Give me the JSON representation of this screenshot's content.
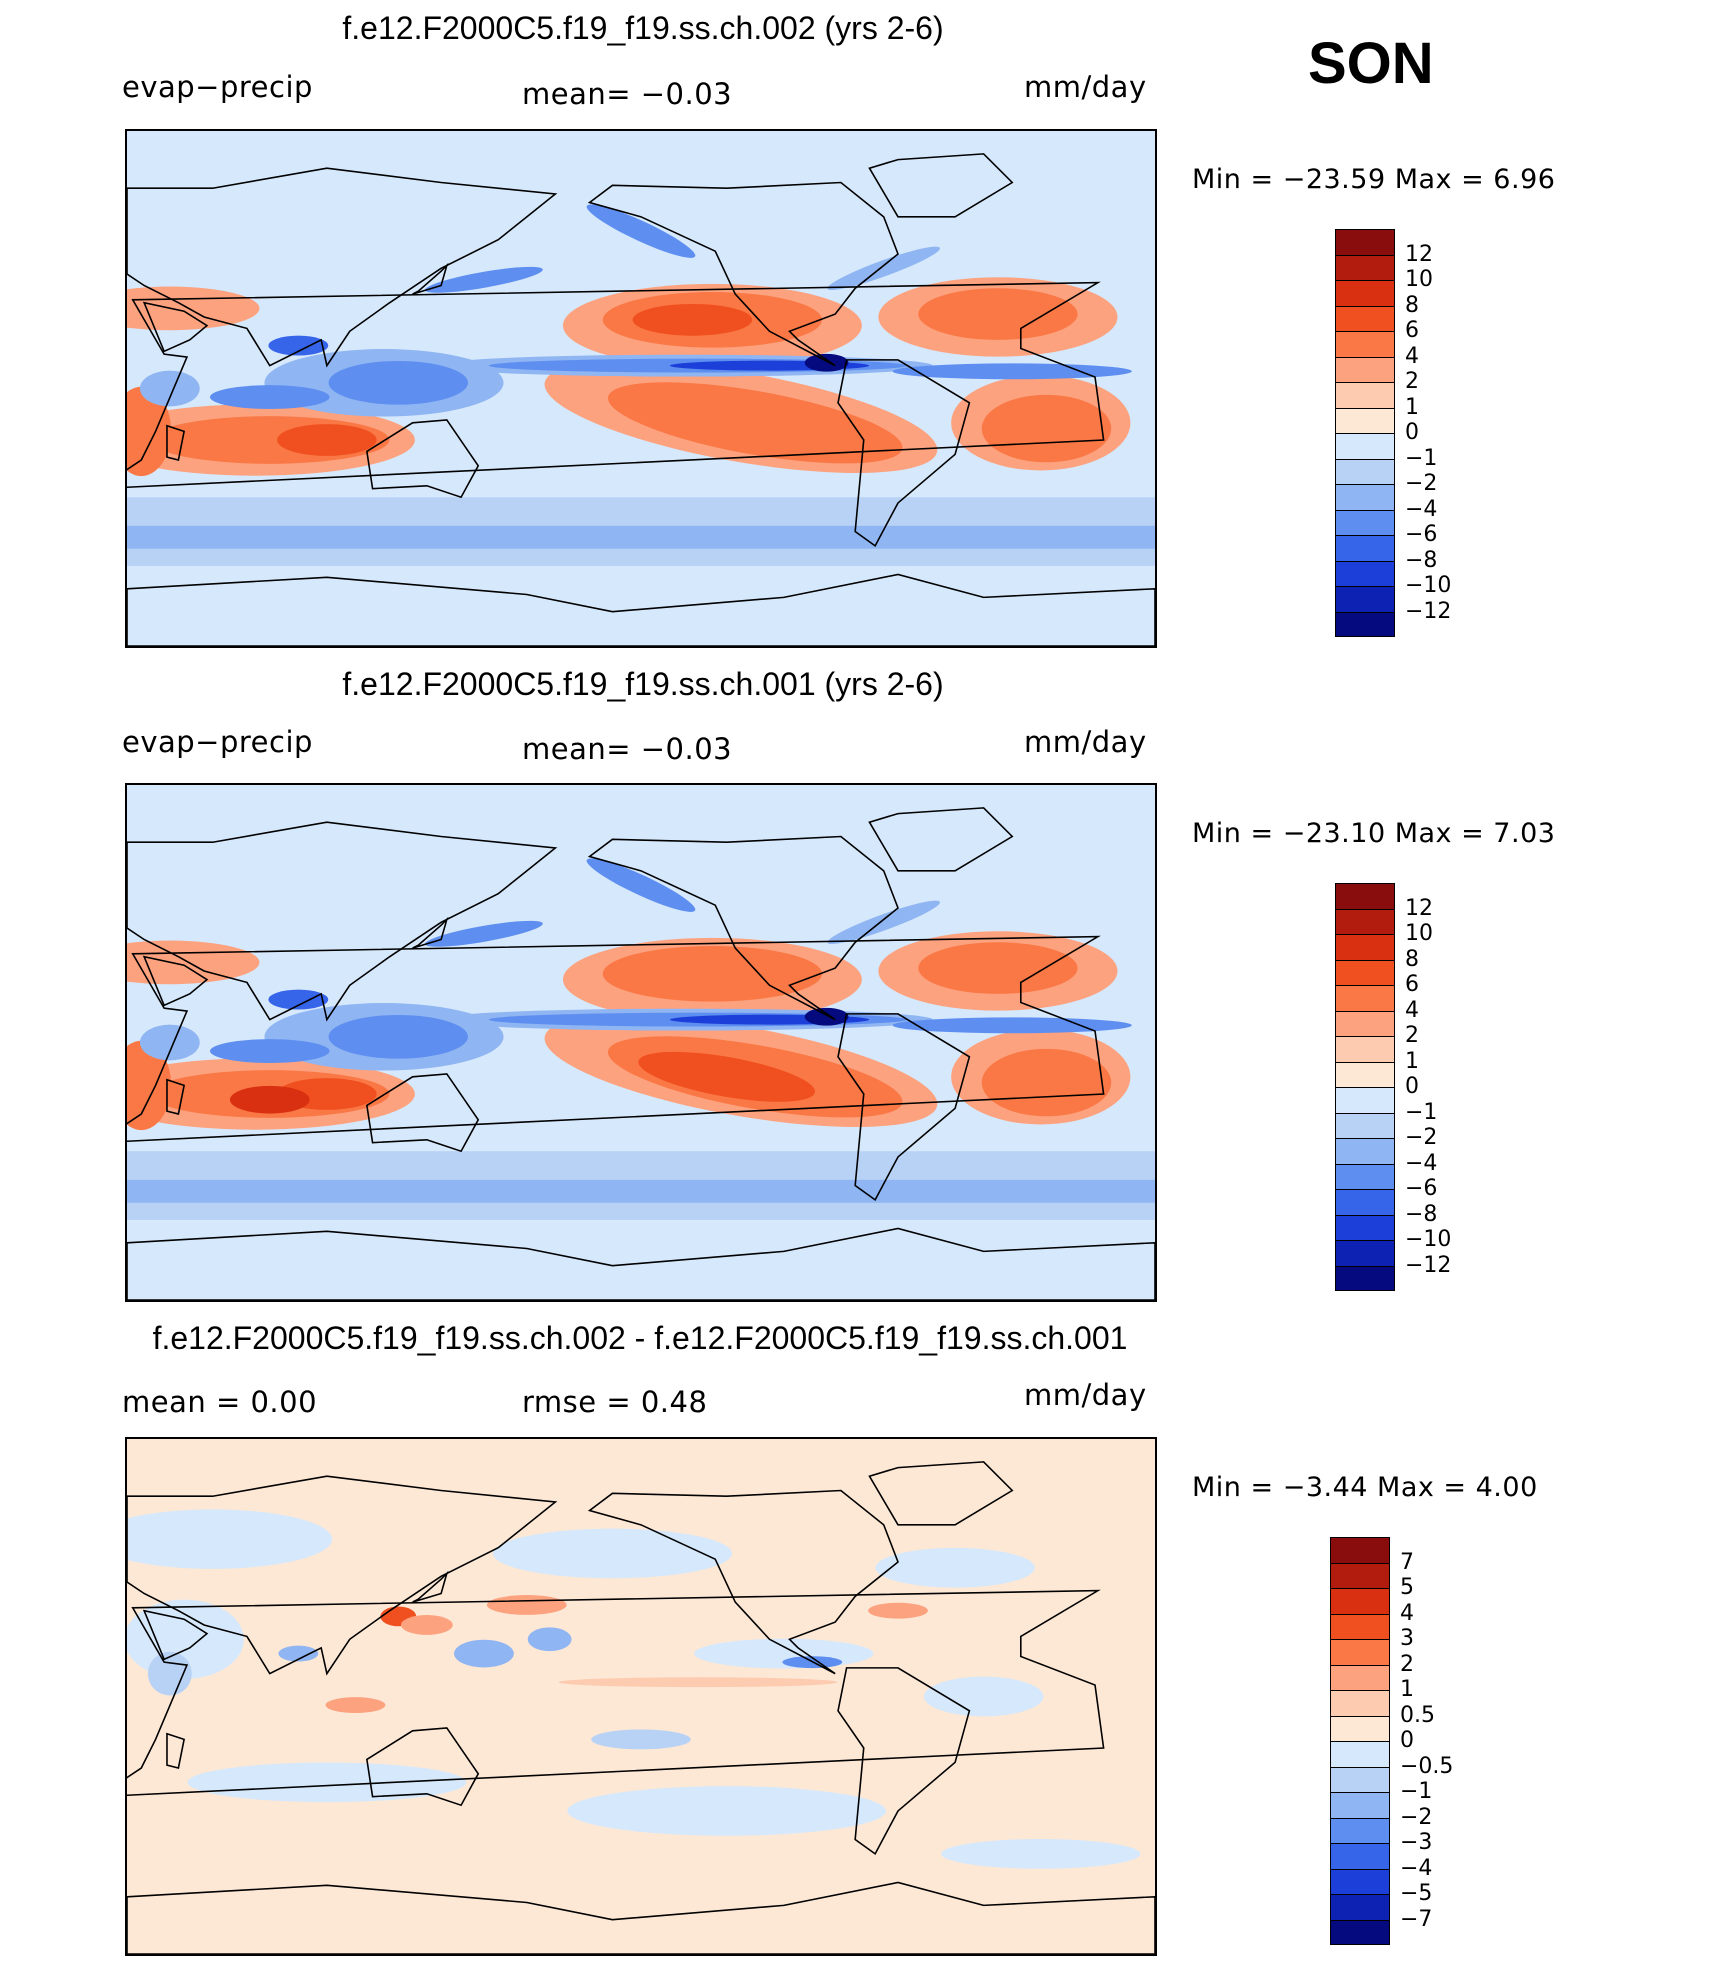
{
  "season": "SON",
  "panels": [
    {
      "title": "f.e12.F2000C5.f19_f19.ss.ch.002 (yrs 2-6)",
      "left_label": "evap−precip",
      "center_label": "mean=   −0.03",
      "right_label": "mm/day",
      "minmax": "Min  =  −23.59  Max  =     6.96"
    },
    {
      "title": "f.e12.F2000C5.f19_f19.ss.ch.001 (yrs 2-6)",
      "left_label": "evap−precip",
      "center_label": "mean=   −0.03",
      "right_label": "mm/day",
      "minmax": "Min  =  −23.10  Max  =     7.03"
    },
    {
      "title": "f.e12.F2000C5.f19_f19.ss.ch.002 - f.e12.F2000C5.f19_f19.ss.ch.001",
      "left_label": "mean  =     0.00",
      "center_label": "rmse  =     0.48",
      "right_label": "mm/day",
      "minmax": "Min  =    −3.44  Max  =     4.00"
    }
  ],
  "chart_data": [
    {
      "type": "heatmap",
      "title": "f.e12.F2000C5.f19_f19.ss.ch.002 (yrs 2-6)",
      "variable": "evap−precip",
      "units": "mm/day",
      "mean": -0.03,
      "min": -23.59,
      "max": 6.96,
      "colorbar_levels": [
        "12",
        "10",
        "8",
        "6",
        "4",
        "2",
        "1",
        "0",
        "−1",
        "−2",
        "−4",
        "−6",
        "−8",
        "−10",
        "−12"
      ],
      "colorbar_colors": [
        "#8a0d0d",
        "#b21c0e",
        "#d83010",
        "#f0501f",
        "#fa7845",
        "#fca27f",
        "#fdcbb0",
        "#fde8d6",
        "#d6e8fb",
        "#b8d2f6",
        "#8fb5f2",
        "#5e8ff0",
        "#3765ea",
        "#1b3fd8",
        "#0d22b2",
        "#050a7e"
      ]
    },
    {
      "type": "heatmap",
      "title": "f.e12.F2000C5.f19_f19.ss.ch.001 (yrs 2-6)",
      "variable": "evap−precip",
      "units": "mm/day",
      "mean": -0.03,
      "min": -23.1,
      "max": 7.03,
      "colorbar_levels": [
        "12",
        "10",
        "8",
        "6",
        "4",
        "2",
        "1",
        "0",
        "−1",
        "−2",
        "−4",
        "−6",
        "−8",
        "−10",
        "−12"
      ],
      "colorbar_colors": [
        "#8a0d0d",
        "#b21c0e",
        "#d83010",
        "#f0501f",
        "#fa7845",
        "#fca27f",
        "#fdcbb0",
        "#fde8d6",
        "#d6e8fb",
        "#b8d2f6",
        "#8fb5f2",
        "#5e8ff0",
        "#3765ea",
        "#1b3fd8",
        "#0d22b2",
        "#050a7e"
      ]
    },
    {
      "type": "heatmap",
      "title": "f.e12.F2000C5.f19_f19.ss.ch.002 - f.e12.F2000C5.f19_f19.ss.ch.001",
      "units": "mm/day",
      "mean": 0.0,
      "rmse": 0.48,
      "min": -3.44,
      "max": 4.0,
      "colorbar_levels": [
        "7",
        "5",
        "4",
        "3",
        "2",
        "1",
        "0.5",
        "0",
        "−0.5",
        "−1",
        "−2",
        "−3",
        "−4",
        "−5",
        "−7"
      ],
      "colorbar_colors": [
        "#8a0d0d",
        "#b21c0e",
        "#d83010",
        "#f0501f",
        "#fa7845",
        "#fca27f",
        "#fdcbb0",
        "#fde8d6",
        "#d6e8fb",
        "#b8d2f6",
        "#8fb5f2",
        "#5e8ff0",
        "#3765ea",
        "#1b3fd8",
        "#0d22b2",
        "#050a7e"
      ]
    }
  ]
}
